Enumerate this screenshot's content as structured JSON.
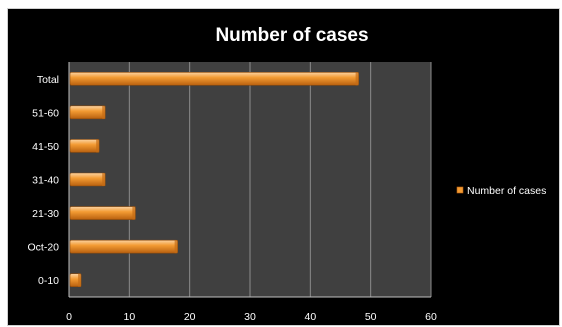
{
  "chart_data": {
    "type": "bar",
    "orientation": "horizontal",
    "title": "Number of cases",
    "xlabel": "",
    "ylabel": "",
    "categories": [
      "0-10",
      "Oct-20",
      "21-30",
      "31-40",
      "41-50",
      "51-60",
      "Total"
    ],
    "series": [
      {
        "name": "Number of cases",
        "values": [
          2,
          18,
          11,
          6,
          5,
          6,
          48
        ]
      }
    ],
    "xlim": [
      0,
      60
    ],
    "xticks": [
      0,
      10,
      20,
      30,
      40,
      50,
      60
    ],
    "grid": true,
    "legend_position": "right",
    "colors": {
      "background": "#000000",
      "plot_area": "#404040",
      "gridline": "#8c8c8c",
      "bar_light": "#fbd3a3",
      "bar_mid": "#f39b33",
      "bar_dark": "#b8600f",
      "text": "#ffffff"
    }
  }
}
